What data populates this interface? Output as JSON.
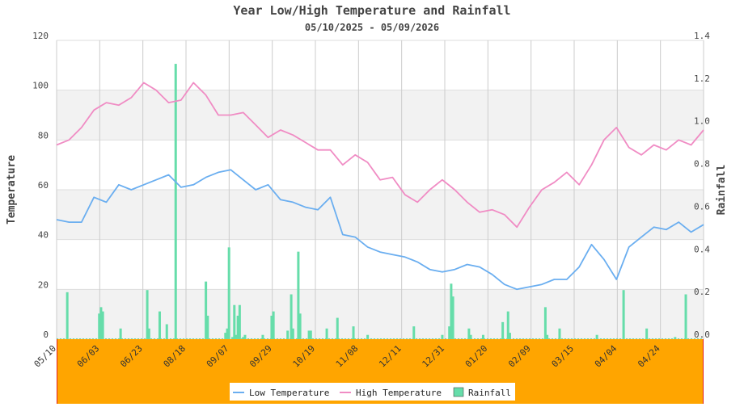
{
  "chart_data": {
    "type": "line",
    "title": "Year Low/High Temperature and Rainfall",
    "subtitle": "05/10/2025 - 05/09/2026",
    "ylabel": "Temperature",
    "y2label": "Rainfall",
    "ylim": [
      0,
      120
    ],
    "y2lim": [
      0,
      1.4
    ],
    "yticks": [
      "0",
      "20",
      "40",
      "60",
      "80",
      "100",
      "120"
    ],
    "y2ticks": [
      "0.0",
      "0.2",
      "0.4",
      "0.6",
      "0.8",
      "1.0",
      "1.2",
      "1.4"
    ],
    "xticks": [
      "05/10",
      "06/03",
      "06/23",
      "08/18",
      "09/07",
      "09/29",
      "10/19",
      "11/08",
      "12/11",
      "12/31",
      "01/20",
      "02/09",
      "03/15",
      "04/04",
      "04/24"
    ],
    "grid": true,
    "legend_position": "bottom-center",
    "colors": {
      "low": "#6aaef0",
      "high": "#f08cc4",
      "rain": "#66ddaa",
      "plot_band": "#f2f2f2",
      "footer": "#ffa500",
      "footer_border": "#e02020"
    },
    "series": [
      {
        "name": "Low Temperature",
        "x": [
          0,
          7,
          14,
          21,
          28,
          35,
          42,
          49,
          56,
          63,
          70,
          77,
          84,
          91,
          98,
          105,
          112,
          119,
          126,
          133,
          140,
          147,
          154,
          161,
          168,
          175,
          182,
          189,
          196,
          203,
          210,
          217,
          224,
          231,
          238,
          245,
          252,
          259,
          266,
          273,
          280,
          287,
          294,
          301,
          308,
          315,
          322,
          329,
          336,
          343,
          350,
          357,
          364
        ],
        "values": [
          48,
          47,
          47,
          57,
          55,
          62,
          60,
          62,
          64,
          66,
          61,
          62,
          65,
          67,
          68,
          64,
          60,
          62,
          56,
          55,
          53,
          52,
          57,
          42,
          41,
          37,
          35,
          34,
          33,
          31,
          28,
          27,
          28,
          30,
          29,
          26,
          22,
          20,
          21,
          22,
          24,
          24,
          29,
          38,
          32,
          24,
          37,
          41,
          45,
          44,
          47,
          43,
          46
        ]
      },
      {
        "name": "High Temperature",
        "x": [
          0,
          7,
          14,
          21,
          28,
          35,
          42,
          49,
          56,
          63,
          70,
          77,
          84,
          91,
          98,
          105,
          112,
          119,
          126,
          133,
          140,
          147,
          154,
          161,
          168,
          175,
          182,
          189,
          196,
          203,
          210,
          217,
          224,
          231,
          238,
          245,
          252,
          259,
          266,
          273,
          280,
          287,
          294,
          301,
          308,
          315,
          322,
          329,
          336,
          343,
          350,
          357,
          364
        ],
        "values": [
          78,
          80,
          85,
          92,
          95,
          94,
          97,
          103,
          100,
          95,
          96,
          103,
          98,
          90,
          90,
          91,
          86,
          81,
          84,
          82,
          79,
          76,
          76,
          70,
          74,
          71,
          64,
          65,
          58,
          55,
          60,
          64,
          60,
          55,
          51,
          52,
          50,
          45,
          53,
          60,
          63,
          67,
          62,
          70,
          80,
          85,
          77,
          74,
          78,
          76,
          80,
          78,
          84
        ]
      },
      {
        "name": "Rainfall",
        "axis": "right",
        "x": [
          6,
          24,
          25,
          26,
          36,
          51,
          52,
          58,
          62,
          67,
          84,
          85,
          95,
          96,
          97,
          99,
          100,
          101,
          102,
          103,
          105,
          106,
          116,
          121,
          122,
          130,
          132,
          133,
          136,
          137,
          142,
          143,
          152,
          158,
          167,
          175,
          201,
          217,
          221,
          222,
          223,
          232,
          233,
          240,
          251,
          254,
          255,
          275,
          276,
          283,
          304,
          319,
          332,
          348,
          354
        ],
        "values": [
          0.22,
          0.12,
          0.15,
          0.13,
          0.05,
          0.23,
          0.05,
          0.13,
          0.07,
          1.29,
          0.27,
          0.11,
          0.03,
          0.05,
          0.43,
          0.01,
          0.16,
          0.02,
          0.11,
          0.16,
          0.01,
          0.02,
          0.02,
          0.11,
          0.13,
          0.04,
          0.21,
          0.05,
          0.41,
          0.12,
          0.04,
          0.04,
          0.05,
          0.1,
          0.06,
          0.02,
          0.06,
          0.02,
          0.06,
          0.26,
          0.2,
          0.05,
          0.02,
          0.02,
          0.08,
          0.13,
          0.03,
          0.15,
          0.02,
          0.05,
          0.02,
          0.23,
          0.05,
          0.01,
          0.21
        ]
      }
    ]
  }
}
